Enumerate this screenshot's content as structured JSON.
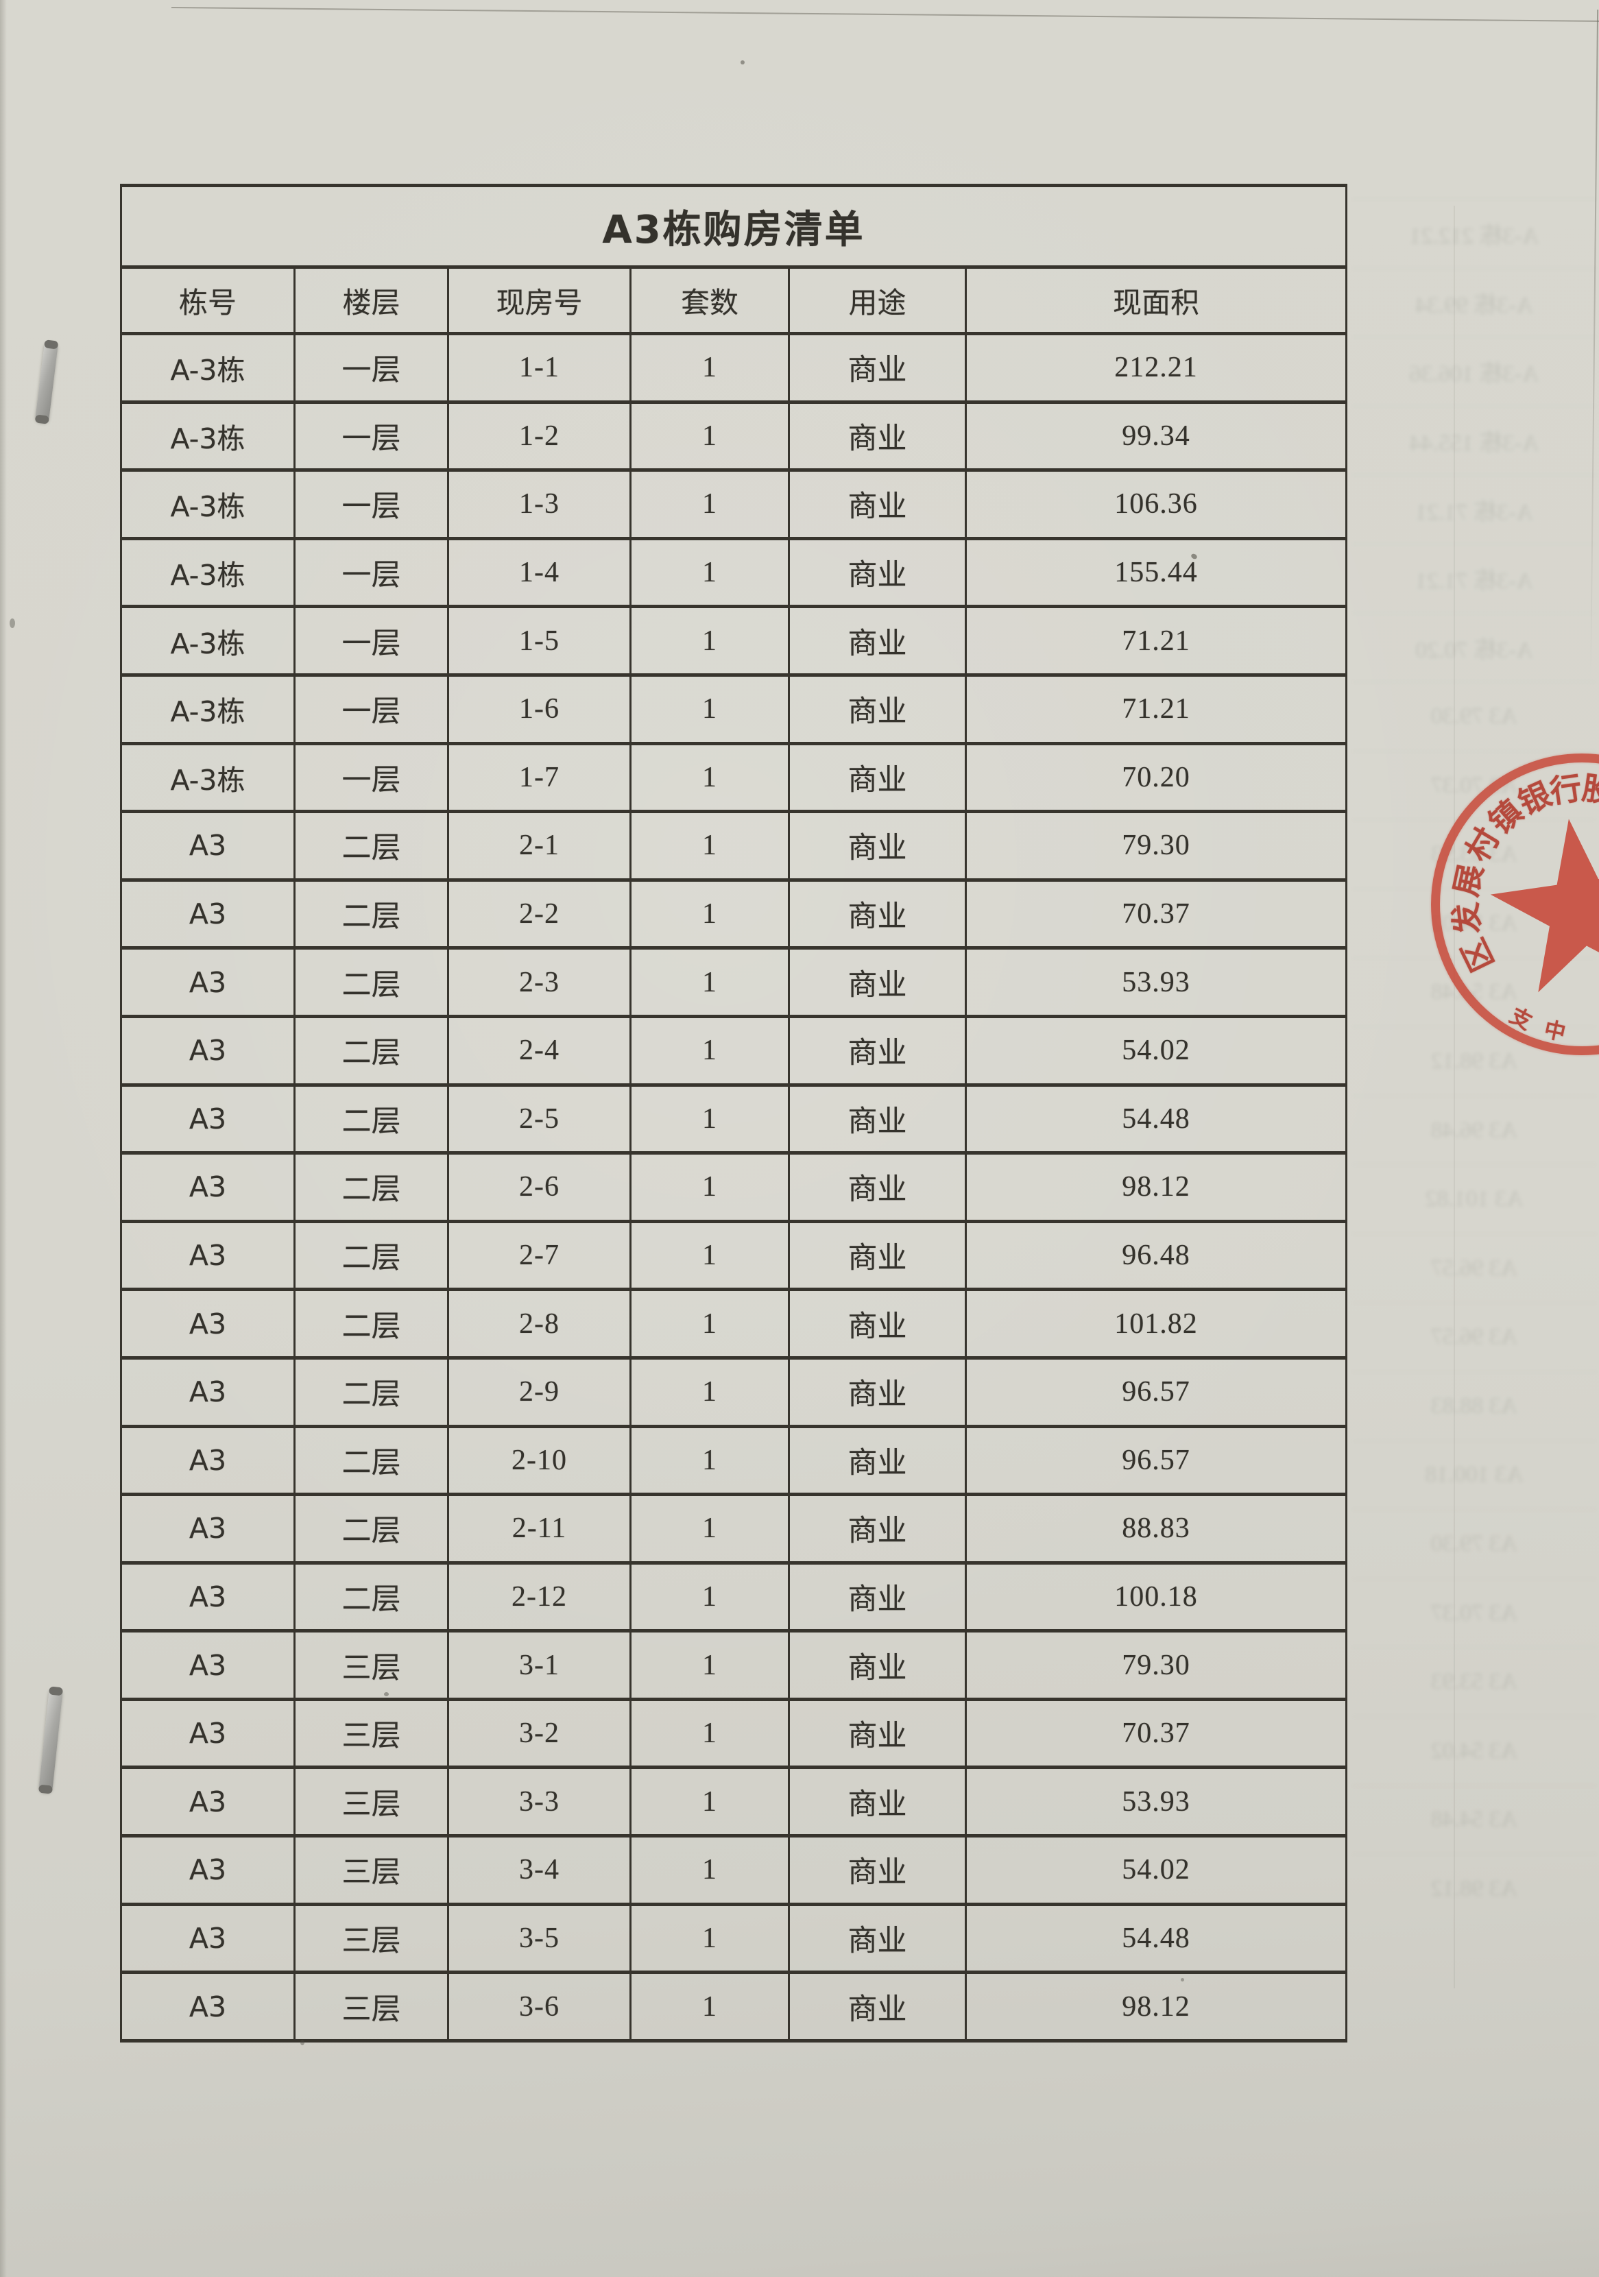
{
  "document": {
    "title": "A3栋购房清单",
    "columns": [
      "栋号",
      "楼层",
      "现房号",
      "套数",
      "用途",
      "现面积"
    ],
    "rows": [
      [
        "A-3栋",
        "一层",
        "1-1",
        "1",
        "商业",
        "212.21"
      ],
      [
        "A-3栋",
        "一层",
        "1-2",
        "1",
        "商业",
        "99.34"
      ],
      [
        "A-3栋",
        "一层",
        "1-3",
        "1",
        "商业",
        "106.36"
      ],
      [
        "A-3栋",
        "一层",
        "1-4",
        "1",
        "商业",
        "155.44"
      ],
      [
        "A-3栋",
        "一层",
        "1-5",
        "1",
        "商业",
        "71.21"
      ],
      [
        "A-3栋",
        "一层",
        "1-6",
        "1",
        "商业",
        "71.21"
      ],
      [
        "A-3栋",
        "一层",
        "1-7",
        "1",
        "商业",
        "70.20"
      ],
      [
        "A3",
        "二层",
        "2-1",
        "1",
        "商业",
        "79.30"
      ],
      [
        "A3",
        "二层",
        "2-2",
        "1",
        "商业",
        "70.37"
      ],
      [
        "A3",
        "二层",
        "2-3",
        "1",
        "商业",
        "53.93"
      ],
      [
        "A3",
        "二层",
        "2-4",
        "1",
        "商业",
        "54.02"
      ],
      [
        "A3",
        "二层",
        "2-5",
        "1",
        "商业",
        "54.48"
      ],
      [
        "A3",
        "二层",
        "2-6",
        "1",
        "商业",
        "98.12"
      ],
      [
        "A3",
        "二层",
        "2-7",
        "1",
        "商业",
        "96.48"
      ],
      [
        "A3",
        "二层",
        "2-8",
        "1",
        "商业",
        "101.82"
      ],
      [
        "A3",
        "二层",
        "2-9",
        "1",
        "商业",
        "96.57"
      ],
      [
        "A3",
        "二层",
        "2-10",
        "1",
        "商业",
        "96.57"
      ],
      [
        "A3",
        "二层",
        "2-11",
        "1",
        "商业",
        "88.83"
      ],
      [
        "A3",
        "二层",
        "2-12",
        "1",
        "商业",
        "100.18"
      ],
      [
        "A3",
        "三层",
        "3-1",
        "1",
        "商业",
        "79.30"
      ],
      [
        "A3",
        "三层",
        "3-2",
        "1",
        "商业",
        "70.37"
      ],
      [
        "A3",
        "三层",
        "3-3",
        "1",
        "商业",
        "53.93"
      ],
      [
        "A3",
        "三层",
        "3-4",
        "1",
        "商业",
        "54.02"
      ],
      [
        "A3",
        "三层",
        "3-5",
        "1",
        "商业",
        "54.48"
      ],
      [
        "A3",
        "三层",
        "3-6",
        "1",
        "商业",
        "98.12"
      ]
    ]
  },
  "stamp": {
    "arc_chars": [
      "区",
      "发",
      "展",
      "村",
      "镇",
      "银",
      "行",
      "股"
    ],
    "bottom_chars": [
      "中",
      "支"
    ],
    "color": "#c63c2c"
  },
  "colors": {
    "paper": "#d7d6ce",
    "table_line": "#37342d",
    "ink": "#34322c",
    "stamp_red": "#c63c2c"
  }
}
